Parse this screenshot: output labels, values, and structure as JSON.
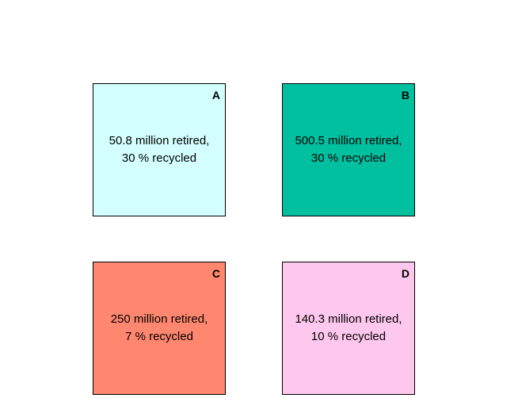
{
  "boxes": [
    {
      "letter": "A",
      "line1": "50.8 million retired,",
      "line2": "30 % recycled",
      "color": "#d4ffff"
    },
    {
      "letter": "B",
      "line1": "500.5 million retired,",
      "line2": "30 % recycled",
      "color": "#00c0a0"
    },
    {
      "letter": "C",
      "line1": "250 million retired,",
      "line2": "7 % recycled",
      "color": "#ff8770"
    },
    {
      "letter": "D",
      "line1": "140.3 million retired,",
      "line2": "10 % recycled",
      "color": "#fec7ee"
    }
  ]
}
